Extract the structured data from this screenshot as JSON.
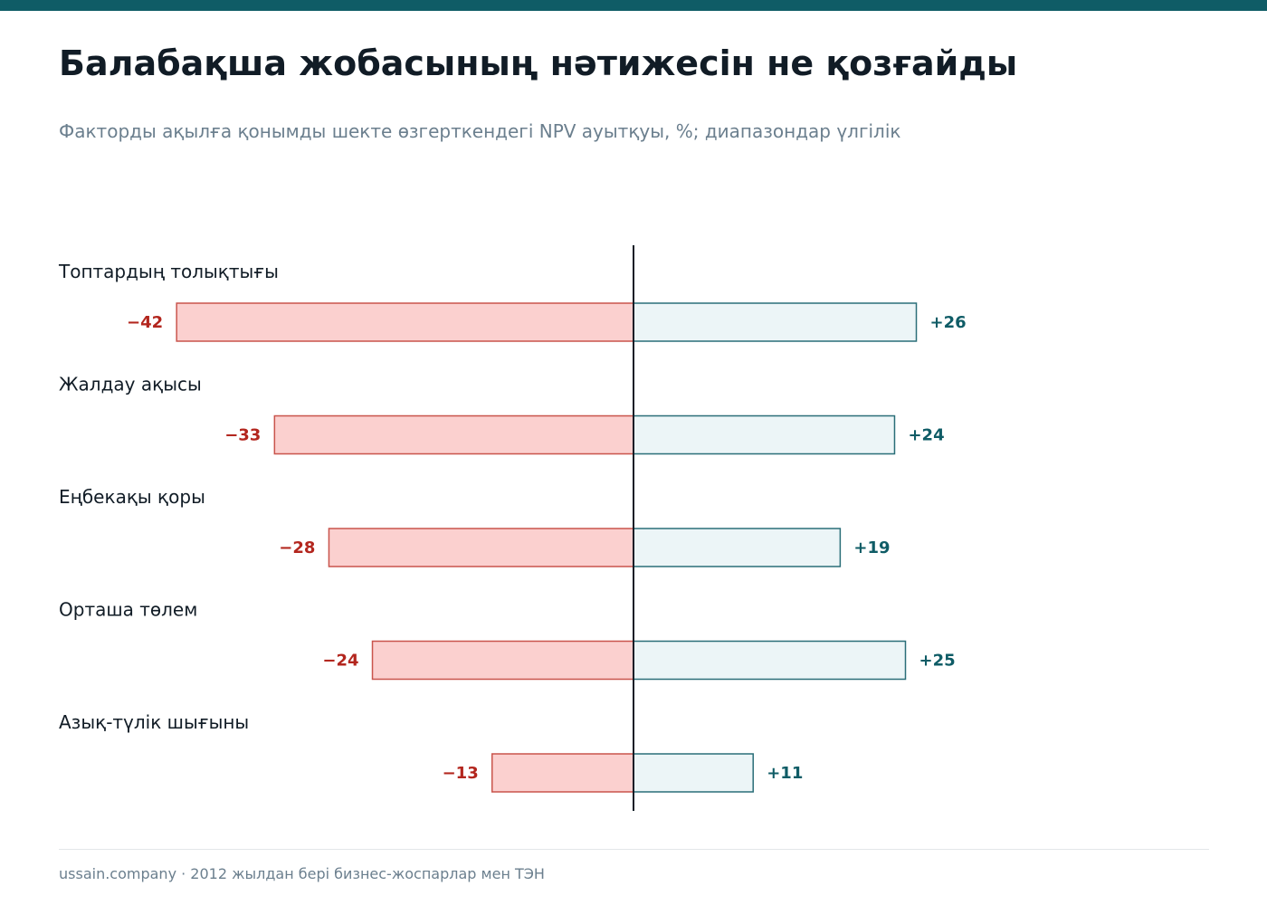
{
  "header": {
    "title": "Балабақша жобасының нәтижесін не қозғайды",
    "subtitle": "Факторды ақылға қонымды шекте өзгерткендегі NPV ауытқуы, %; диапазондар үлгілік"
  },
  "colors": {
    "accent": "#0f5c66",
    "negative_fill": "#fbd0cf",
    "negative_stroke": "#c9544c",
    "negative_text": "#b3261e",
    "positive_fill": "#ecf5f7",
    "positive_stroke": "#2a6e78",
    "positive_text": "#0f5c66",
    "title": "#111c26",
    "muted": "#6b7f8e"
  },
  "chart_data": {
    "type": "bar",
    "orientation": "horizontal",
    "layout": "tornado",
    "categories": [
      "Топтардың толықтығы",
      "Жалдау ақысы",
      "Еңбекақы қоры",
      "Орташа төлем",
      "Азық-түлік шығыны"
    ],
    "series": [
      {
        "values": [
          -42,
          -33,
          -28,
          -24,
          -13
        ],
        "labels": [
          "−42",
          "−33",
          "−28",
          "−24",
          "−13"
        ]
      },
      {
        "values": [
          26,
          24,
          19,
          25,
          11
        ],
        "labels": [
          "+26",
          "+24",
          "+19",
          "+25",
          "+11"
        ]
      }
    ],
    "xlim": [
      -42,
      42
    ],
    "grid": false,
    "legend": "none"
  },
  "footer": {
    "text": "ussain.company · 2012 жылдан бері бизнес-жоспарлар мен ТЭН"
  }
}
